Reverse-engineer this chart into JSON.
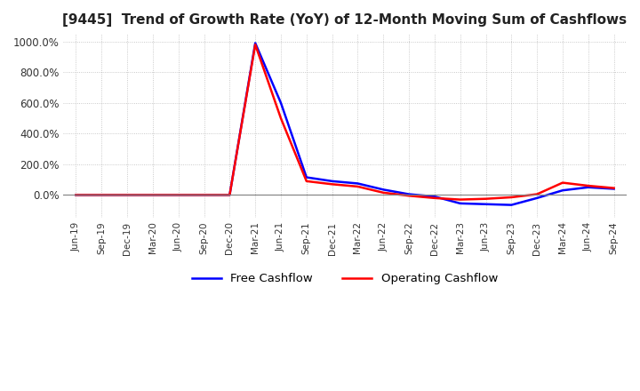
{
  "title": "[9445]  Trend of Growth Rate (YoY) of 12-Month Moving Sum of Cashflows",
  "title_fontsize": 11,
  "ylim": [
    -150,
    1050
  ],
  "yticks": [
    0,
    200,
    400,
    600,
    800,
    1000
  ],
  "ytick_labels": [
    "0.0%",
    "200.0%",
    "400.0%",
    "600.0%",
    "800.0%",
    "1000.0%"
  ],
  "background_color": "#ffffff",
  "grid_color": "#aaaaaa",
  "legend_labels": [
    "Operating Cashflow",
    "Free Cashflow"
  ],
  "legend_colors": [
    "#ff0000",
    "#0000ff"
  ],
  "x_dates": [
    "Jun-19",
    "Sep-19",
    "Dec-19",
    "Mar-20",
    "Jun-20",
    "Sep-20",
    "Dec-20",
    "Mar-21",
    "Jun-21",
    "Sep-21",
    "Dec-21",
    "Mar-22",
    "Jun-22",
    "Sep-22",
    "Dec-22",
    "Mar-23",
    "Jun-23",
    "Sep-23",
    "Dec-23",
    "Mar-24",
    "Jun-24",
    "Sep-24"
  ],
  "operating_cashflow": [
    0,
    0,
    0,
    0,
    0,
    0,
    0,
    980,
    500,
    90,
    70,
    55,
    15,
    -5,
    -20,
    -30,
    -25,
    -15,
    5,
    80,
    60,
    45
  ],
  "free_cashflow": [
    0,
    0,
    0,
    0,
    0,
    0,
    0,
    990,
    600,
    115,
    90,
    75,
    35,
    5,
    -10,
    -55,
    -60,
    -65,
    -20,
    30,
    50,
    40
  ]
}
